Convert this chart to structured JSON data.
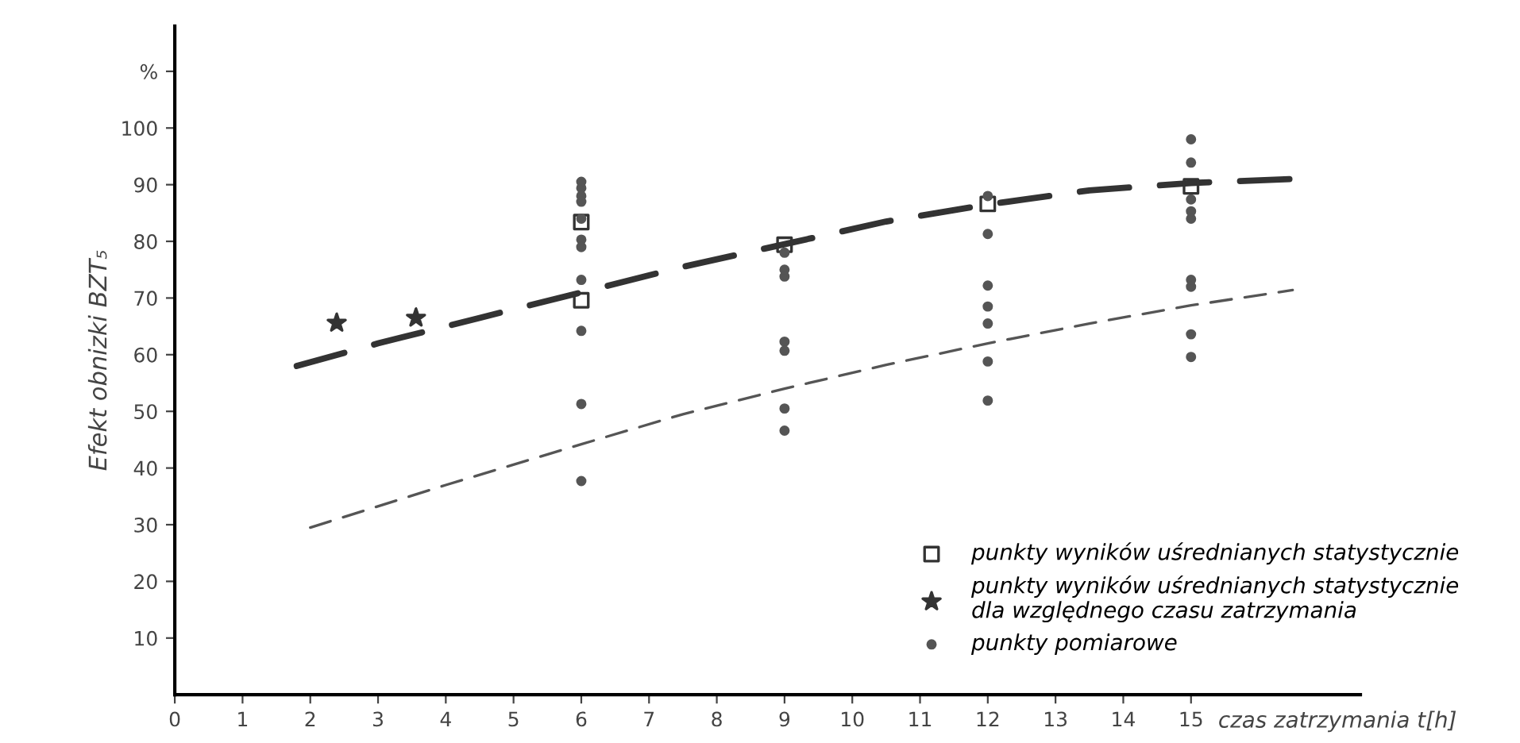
{
  "chart_data": {
    "type": "scatter",
    "xlabel": "czas zatrzymania t[h]",
    "ylabel": "Efekt obnizki BZT₅",
    "xlim": [
      0,
      17.5
    ],
    "ylim": [
      0,
      118
    ],
    "xticks": [
      0,
      1,
      2,
      3,
      4,
      5,
      6,
      7,
      8,
      9,
      10,
      11,
      12,
      13,
      14,
      15
    ],
    "yticks": [
      10,
      20,
      30,
      40,
      50,
      60,
      70,
      80,
      90,
      100,
      {
        "value": 110,
        "label": "%"
      }
    ],
    "grid": false,
    "legend": "bottom right",
    "series": [
      {
        "type": "line",
        "color": "#333333",
        "line_style": "dashed",
        "marker": "none",
        "x": [
          1.8,
          3,
          4.5,
          6,
          7.5,
          9,
          10.5,
          12,
          13.5,
          15,
          16.5
        ],
        "values": [
          58,
          62,
          66.5,
          71,
          75.5,
          79.5,
          83.5,
          86.5,
          89,
          90.3,
          91
        ]
      },
      {
        "type": "line",
        "color": "#555555",
        "line_style": "dashed",
        "marker": "none",
        "x": [
          2,
          4,
          6,
          7.5,
          9,
          10.5,
          12,
          13.5,
          15,
          16.5
        ],
        "values": [
          29.5,
          37,
          44.2,
          49.5,
          54,
          58.2,
          62,
          65.5,
          68.7,
          71.4
        ]
      },
      {
        "name": "punkty wyników uśrednianych statystycznie",
        "color": "#333333",
        "marker": "square",
        "x": [
          6,
          6,
          9,
          12,
          15
        ],
        "values": [
          83.4,
          69.6,
          79.4,
          86.6,
          89.7
        ]
      },
      {
        "name": "punkty wyników uśrednianych statystycznie\ndla względnego czasu zatrzymania",
        "color": "#333333",
        "marker": "star",
        "x": [
          2.39,
          3.56
        ],
        "values": [
          65.6,
          66.5
        ]
      },
      {
        "name": "punkty pomiarowe",
        "color": "#555555",
        "marker": "circle",
        "x": [
          6,
          6,
          6,
          6,
          6,
          6,
          6,
          6,
          6,
          6,
          6,
          9,
          9,
          9,
          9,
          9,
          9,
          9,
          12,
          12,
          12,
          12,
          12,
          12,
          12,
          15,
          15,
          15,
          15,
          15,
          15,
          15,
          15,
          15
        ],
        "values": [
          90.5,
          89.4,
          88,
          87,
          84,
          80.3,
          79,
          73.2,
          64.2,
          51.3,
          37.7,
          78,
          75,
          73.8,
          62.3,
          60.7,
          50.5,
          46.6,
          88,
          81.3,
          72.2,
          68.5,
          65.5,
          58.8,
          51.9,
          98,
          93.9,
          87.4,
          85.3,
          84,
          73.2,
          72,
          63.6,
          59.6
        ]
      }
    ]
  }
}
